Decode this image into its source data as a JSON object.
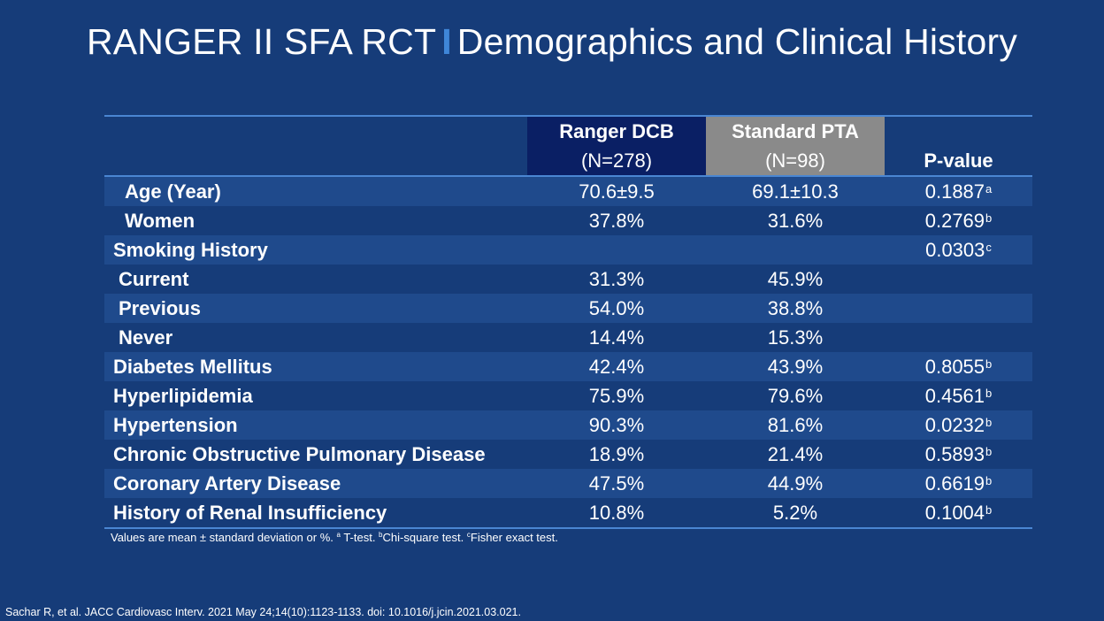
{
  "slide": {
    "title_main": "RANGER II SFA RCT",
    "title_separator": "I",
    "title_sub": "Demographics and Clinical History",
    "colors": {
      "background": "#163c79",
      "row_stripe": "#1f4a8c",
      "ranger_header": "#0a1f64",
      "pta_header": "#8a8a8a",
      "accent_line": "#4a86d2",
      "separator": "#3f86d8"
    }
  },
  "table": {
    "header": {
      "ranger_name": "Ranger DCB",
      "ranger_n": "(N=278)",
      "pta_name": "Standard PTA",
      "pta_n": "(N=98)",
      "pvalue": "P-value"
    },
    "rows": [
      {
        "label": "Age (Year)",
        "ranger": "70.6±9.5",
        "pta": "69.1±10.3",
        "p": "0.1887",
        "p_sup": "a"
      },
      {
        "label": "Women",
        "ranger": "37.8%",
        "pta": "31.6%",
        "p": "0.2769",
        "p_sup": "b"
      },
      {
        "label": "Smoking History",
        "ranger": "",
        "pta": "",
        "p": "0.0303",
        "p_sup": "c"
      },
      {
        "label": "Current",
        "ranger": "31.3%",
        "pta": "45.9%",
        "p": "",
        "p_sup": ""
      },
      {
        "label": "Previous",
        "ranger": "54.0%",
        "pta": "38.8%",
        "p": "",
        "p_sup": ""
      },
      {
        "label": "Never",
        "ranger": "14.4%",
        "pta": "15.3%",
        "p": "",
        "p_sup": ""
      },
      {
        "label": "Diabetes Mellitus",
        "ranger": "42.4%",
        "pta": "43.9%",
        "p": "0.8055",
        "p_sup": "b"
      },
      {
        "label": "Hyperlipidemia",
        "ranger": "75.9%",
        "pta": "79.6%",
        "p": "0.4561",
        "p_sup": "b"
      },
      {
        "label": "Hypertension",
        "ranger": "90.3%",
        "pta": "81.6%",
        "p": "0.0232",
        "p_sup": "b"
      },
      {
        "label": "Chronic Obstructive Pulmonary Disease",
        "ranger": "18.9%",
        "pta": "21.4%",
        "p": "0.5893",
        "p_sup": "b"
      },
      {
        "label": "Coronary Artery Disease",
        "ranger": "47.5%",
        "pta": "44.9%",
        "p": "0.6619",
        "p_sup": "b"
      },
      {
        "label": "History of Renal Insufficiency",
        "ranger": "10.8%",
        "pta": "5.2%",
        "p": "0.1004",
        "p_sup": "b"
      }
    ]
  },
  "footnote": {
    "intro": "Values are mean ± standard deviation or %. ",
    "sup_a": "a",
    "a_text": " T-test. ",
    "sup_b": "b",
    "b_text": "Chi-square test. ",
    "sup_c": "c",
    "c_text": "Fisher exact test."
  },
  "citation": "Sachar R, et al. JACC Cardiovasc Interv. 2021 May 24;14(10):1123-1133. doi: 10.1016/j.jcin.2021.03.021."
}
